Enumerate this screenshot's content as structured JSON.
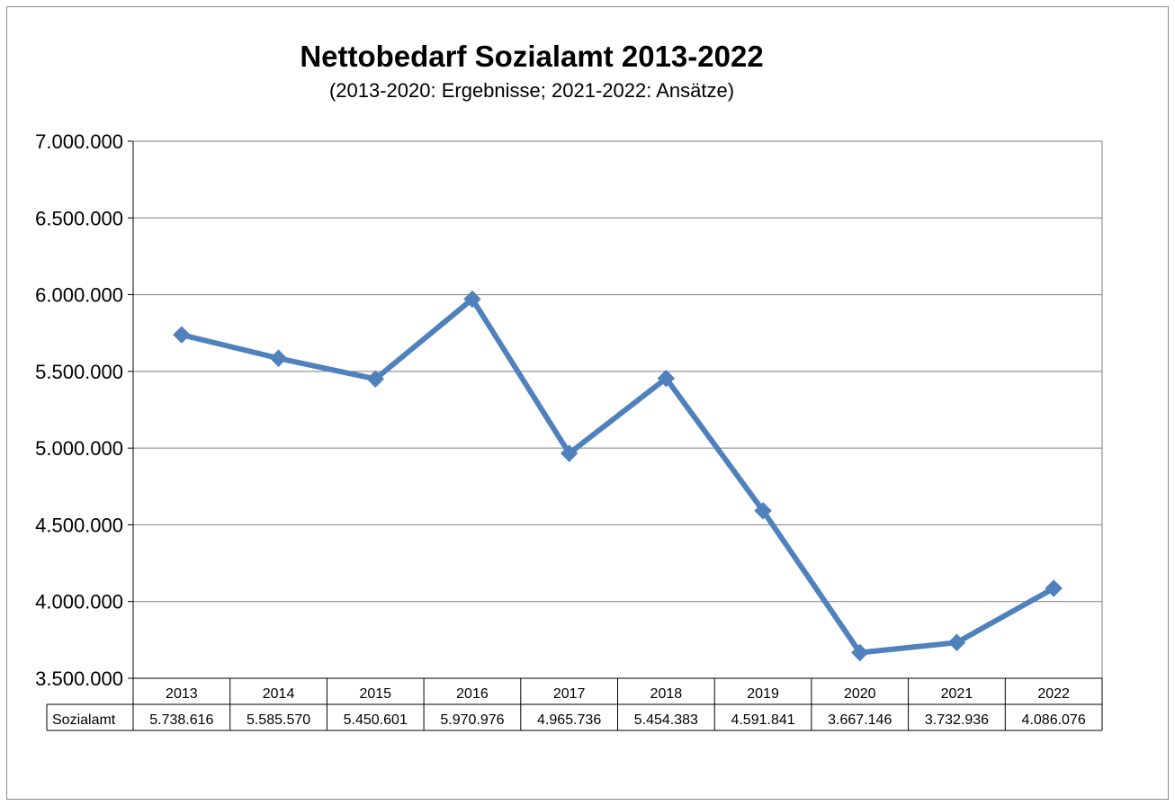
{
  "chart_data": {
    "type": "line",
    "title": "Nettobedarf Sozialamt 2013-2022",
    "subtitle": "(2013-2020: Ergebnisse; 2021-2022: Ansätze)",
    "categories": [
      "2013",
      "2014",
      "2015",
      "2016",
      "2017",
      "2018",
      "2019",
      "2020",
      "2021",
      "2022"
    ],
    "series": [
      {
        "name": "Sozialamt",
        "values": [
          5738616,
          5585570,
          5450601,
          5970976,
          4965736,
          5454383,
          4591841,
          3667146,
          3732936,
          4086076
        ],
        "labels": [
          "5.738.616",
          "5.585.570",
          "5.450.601",
          "5.970.976",
          "4.965.736",
          "5.454.383",
          "4.591.841",
          "3.667.146",
          "3.732.936",
          "4.086.076"
        ],
        "color": "#4f81bd"
      }
    ],
    "ylim": [
      3500000,
      7000000
    ],
    "yticks": [
      3500000,
      4000000,
      4500000,
      5000000,
      5500000,
      6000000,
      6500000,
      7000000
    ],
    "ytick_labels": [
      "3.500.000",
      "4.000.000",
      "4.500.000",
      "5.000.000",
      "5.500.000",
      "6.000.000",
      "6.500.000",
      "7.000.000"
    ],
    "grid": true,
    "legend": "data-table"
  }
}
